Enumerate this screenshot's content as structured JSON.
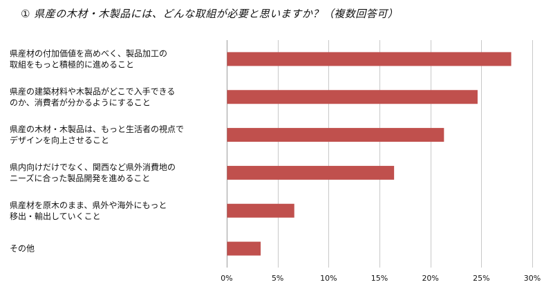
{
  "title": "① 県産の木材・木製品には、どんな取組が必要と思いますか？（複数回答可）",
  "chart_data": {
    "type": "bar",
    "orientation": "horizontal",
    "categories": [
      [
        "県産材の付加価値を高めべく、製品加工の",
        "取組をもっと積極的に進めること"
      ],
      [
        "県産の建築材料や木製品がどこで入手できる",
        "のか、消費者が分かるようにすること"
      ],
      [
        "県産の木材・木製品は、もっと生活者の視点で",
        "デザインを向上させること"
      ],
      [
        "県内向けだけでなく、関西など県外消費地の",
        "ニーズに合った製品開発を進めること"
      ],
      [
        "県産材を原木のまま、県外や海外にもっと",
        "移出・輸出していくこと"
      ],
      [
        "その他"
      ]
    ],
    "values": [
      27.9,
      24.6,
      21.3,
      16.4,
      6.6,
      3.3
    ],
    "xlim": [
      0,
      30
    ],
    "xticks": [
      "0%",
      "5%",
      "10%",
      "15%",
      "20%",
      "25%",
      "30%"
    ],
    "grid": true,
    "bar_color": "#c0504d"
  }
}
